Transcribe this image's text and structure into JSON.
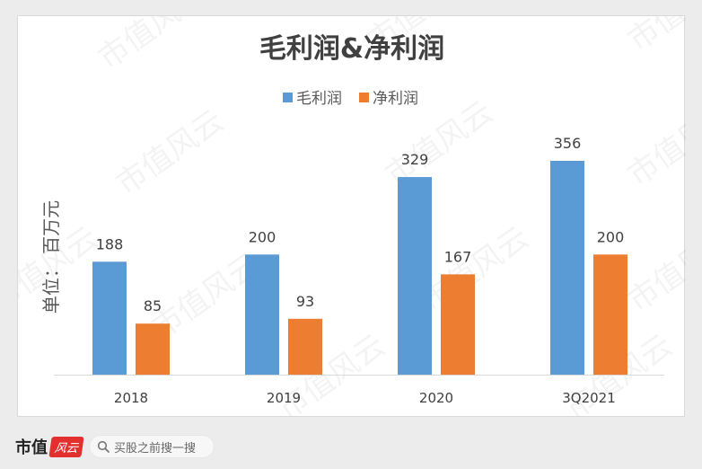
{
  "chart_data": {
    "type": "bar",
    "title": "毛利润&净利润",
    "ylabel": "单位： 百万元",
    "xlabel": "",
    "categories": [
      "2018",
      "2019",
      "2020",
      "3Q2021"
    ],
    "series": [
      {
        "name": "毛利润",
        "values": [
          188,
          200,
          329,
          356
        ],
        "color": "#5b9bd5"
      },
      {
        "name": "净利润",
        "values": [
          85,
          93,
          167,
          200
        ],
        "color": "#ed7d31"
      }
    ],
    "ylim": [
      0,
      380
    ],
    "grid": false,
    "legend_position": "top"
  },
  "watermark": {
    "text": "市值风云"
  },
  "footer": {
    "brand_name": "市值",
    "brand_seal": "风云",
    "search_icon": "search-icon",
    "search_text": "买股之前搜一搜"
  }
}
